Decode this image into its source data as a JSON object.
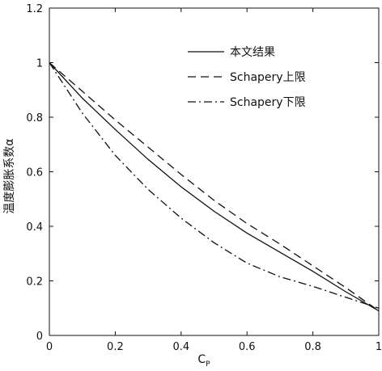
{
  "chart_data": {
    "type": "line",
    "title": "",
    "xlabel": "C",
    "xlabel_subscript": "P",
    "ylabel": "温度膨胀系数α",
    "xlim": [
      0,
      1
    ],
    "ylim": [
      0,
      1.2
    ],
    "x_ticks": [
      "0",
      "0.2",
      "0.4",
      "0.6",
      "0.8",
      "1"
    ],
    "y_ticks": [
      "0",
      "0.2",
      "0.4",
      "0.6",
      "0.8",
      "1",
      "1.2"
    ],
    "grid": false,
    "legend_position": "top-right",
    "series": [
      {
        "name": "本文结果",
        "line_style": "solid",
        "x": [
          0,
          0.1,
          0.2,
          0.3,
          0.4,
          0.5,
          0.6,
          0.7,
          0.8,
          0.9,
          1.0
        ],
        "y": [
          1.0,
          0.87,
          0.755,
          0.645,
          0.545,
          0.455,
          0.375,
          0.305,
          0.235,
          0.16,
          0.09
        ]
      },
      {
        "name": "Schapery上限",
        "line_style": "dashed",
        "x": [
          0,
          0.1,
          0.2,
          0.3,
          0.4,
          0.5,
          0.6,
          0.7,
          0.8,
          0.9,
          1.0
        ],
        "y": [
          1.0,
          0.895,
          0.79,
          0.69,
          0.59,
          0.495,
          0.41,
          0.335,
          0.255,
          0.175,
          0.09
        ]
      },
      {
        "name": "Schapery下限",
        "line_style": "dashdot",
        "x": [
          0,
          0.1,
          0.2,
          0.3,
          0.4,
          0.5,
          0.6,
          0.7,
          0.8,
          0.9,
          1.0
        ],
        "y": [
          1.0,
          0.815,
          0.66,
          0.535,
          0.43,
          0.34,
          0.265,
          0.215,
          0.18,
          0.14,
          0.1
        ]
      }
    ]
  }
}
